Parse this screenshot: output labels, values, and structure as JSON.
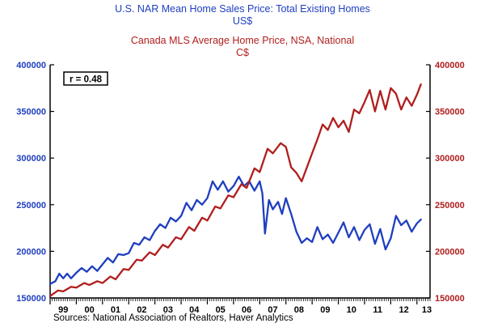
{
  "chart_data": {
    "type": "line",
    "title_us": "U.S. NAR Mean Home Sales Price: Total Existing Homes",
    "unit_us": "US$",
    "title_ca": "Canada MLS Average Home Price, NSA, National",
    "unit_ca": "C$",
    "annotation": "r = 0.48",
    "source": "Sources:  National Association of Realtors, Haver Analytics",
    "ylim_left": [
      150000,
      400000
    ],
    "ylim_right": [
      150000,
      400000
    ],
    "yticks_left": [
      "400000",
      "350000",
      "300000",
      "250000",
      "200000",
      "150000"
    ],
    "yticks_right": [
      "400000",
      "350000",
      "300000",
      "250000",
      "200000",
      "150000"
    ],
    "xlim": [
      1999.0,
      2013.5
    ],
    "xticks": [
      "99",
      "00",
      "01",
      "02",
      "03",
      "04",
      "05",
      "06",
      "07",
      "08",
      "09",
      "10",
      "11",
      "12",
      "13"
    ],
    "grid": false,
    "colors": {
      "us": "#1f3fbf",
      "canada": "#b01e1e",
      "axis": "#000000"
    },
    "series": [
      {
        "key": "us",
        "x": [
          1999.0,
          1999.2,
          1999.35,
          1999.5,
          1999.65,
          1999.8,
          2000.0,
          2000.2,
          2000.4,
          2000.6,
          2000.8,
          2001.0,
          2001.2,
          2001.4,
          2001.6,
          2001.8,
          2002.0,
          2002.2,
          2002.4,
          2002.6,
          2002.8,
          2003.0,
          2003.2,
          2003.4,
          2003.6,
          2003.8,
          2004.0,
          2004.2,
          2004.4,
          2004.6,
          2004.8,
          2005.0,
          2005.2,
          2005.4,
          2005.6,
          2005.8,
          2006.0,
          2006.2,
          2006.4,
          2006.6,
          2006.8,
          2007.0,
          2007.1,
          2007.2,
          2007.35,
          2007.5,
          2007.7,
          2007.85,
          2008.0,
          2008.2,
          2008.4,
          2008.6,
          2008.8,
          2009.0,
          2009.2,
          2009.4,
          2009.6,
          2009.8,
          2010.0,
          2010.2,
          2010.4,
          2010.6,
          2010.8,
          2011.0,
          2011.2,
          2011.4,
          2011.6,
          2011.8,
          2012.0,
          2012.2,
          2012.4,
          2012.6,
          2012.8,
          2013.0,
          2013.15
        ],
        "values": [
          165000,
          168000,
          176000,
          171000,
          176000,
          171000,
          177000,
          182000,
          178000,
          184000,
          179000,
          186000,
          193000,
          188000,
          197000,
          196000,
          198000,
          209000,
          207000,
          215000,
          212000,
          222000,
          229000,
          225000,
          236000,
          232000,
          238000,
          252000,
          244000,
          255000,
          250000,
          257000,
          275000,
          266000,
          275000,
          264000,
          270000,
          280000,
          270000,
          275000,
          265000,
          275000,
          262000,
          219000,
          255000,
          245000,
          253000,
          240000,
          257000,
          240000,
          221000,
          209000,
          214000,
          210000,
          226000,
          213000,
          218000,
          209000,
          220000,
          231000,
          215000,
          226000,
          212000,
          223000,
          229000,
          208000,
          224000,
          202000,
          214000,
          238000,
          228000,
          233000,
          221000,
          230000,
          234000
        ]
      },
      {
        "key": "canada",
        "x": [
          1999.0,
          1999.3,
          1999.5,
          1999.8,
          2000.0,
          2000.3,
          2000.5,
          2000.8,
          2001.0,
          2001.3,
          2001.5,
          2001.8,
          2002.0,
          2002.3,
          2002.5,
          2002.8,
          2003.0,
          2003.3,
          2003.5,
          2003.8,
          2004.0,
          2004.3,
          2004.5,
          2004.8,
          2005.0,
          2005.3,
          2005.5,
          2005.8,
          2006.0,
          2006.3,
          2006.5,
          2006.8,
          2007.0,
          2007.3,
          2007.5,
          2007.8,
          2008.0,
          2008.2,
          2008.4,
          2008.6,
          2008.8,
          2009.0,
          2009.2,
          2009.4,
          2009.6,
          2009.8,
          2010.0,
          2010.2,
          2010.4,
          2010.6,
          2010.8,
          2011.0,
          2011.2,
          2011.4,
          2011.6,
          2011.8,
          2012.0,
          2012.2,
          2012.4,
          2012.6,
          2012.8,
          2013.0,
          2013.15
        ],
        "values": [
          152000,
          158000,
          157000,
          162000,
          161000,
          166000,
          164000,
          168000,
          166000,
          173000,
          170000,
          181000,
          180000,
          191000,
          190000,
          199000,
          196000,
          207000,
          204000,
          215000,
          213000,
          226000,
          222000,
          236000,
          233000,
          248000,
          246000,
          260000,
          258000,
          272000,
          268000,
          289000,
          285000,
          310000,
          305000,
          316000,
          312000,
          290000,
          284000,
          275000,
          290000,
          305000,
          320000,
          336000,
          330000,
          343000,
          333000,
          340000,
          328000,
          352000,
          348000,
          360000,
          373000,
          350000,
          372000,
          352000,
          375000,
          369000,
          352000,
          365000,
          356000,
          368000,
          379000
        ]
      }
    ]
  }
}
